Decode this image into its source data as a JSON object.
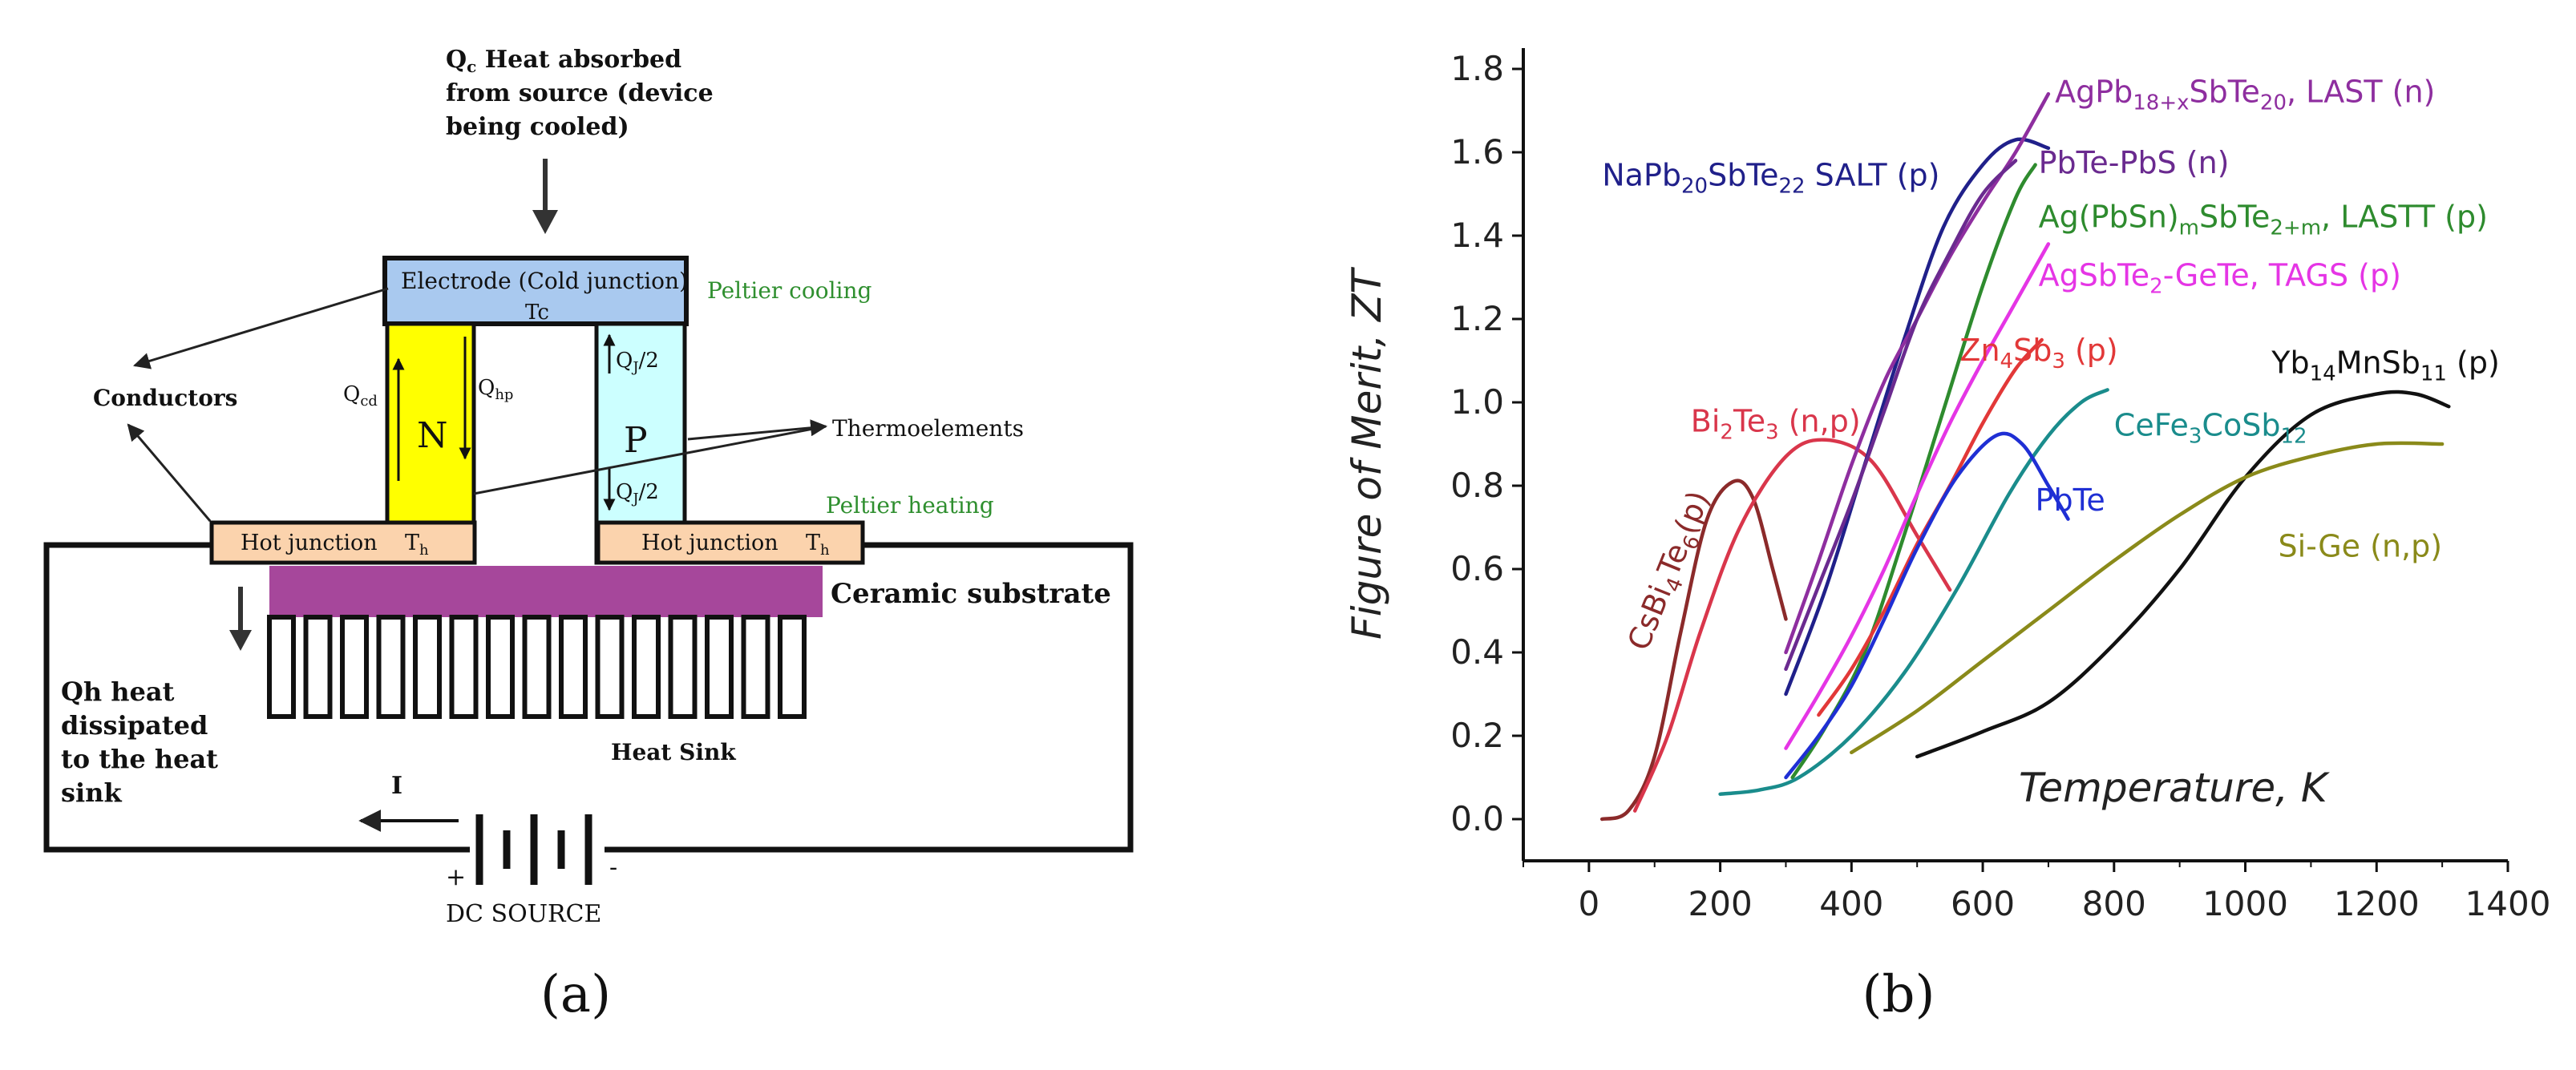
{
  "panel_a": {
    "caption": "(a)",
    "qc_label": "Qc Heat absorbed from source (device being cooled)",
    "qc_lines": [
      "Q",
      "c",
      " Heat absorbed",
      "from source (device",
      "being cooled)"
    ],
    "electrode_label": "Electrode (Cold junction)",
    "tc_label": "Tc",
    "peltier_cooling": "Peltier cooling",
    "peltier_heating": "Peltier heating",
    "conductors": "Conductors",
    "n_label": "N",
    "p_label": "P",
    "qcd_label": "Qcd",
    "qhp_label": "Qhp",
    "qj_top_label": "QJ/2",
    "qj_bottom_label": "QJ/2",
    "thermoelements": "Thermoelements",
    "hot_junction_left": "Hot junction    Th",
    "hot_junction_right": "Hot junction    Th",
    "ceramic_substrate": "Ceramic substrate",
    "heat_sink": "Heat Sink",
    "qh_lines": [
      "Qh heat",
      "dissipated",
      "to the heat",
      "sink"
    ],
    "current_label": "I",
    "plus_sign": "+",
    "minus_sign": "-",
    "dc_source": "DC SOURCE",
    "colors": {
      "electrode": "#a9c9ef",
      "n_leg": "#ffff00",
      "p_leg": "#ccffff",
      "hot_junction": "#fbd3ad",
      "ceramic": "#a6479b",
      "green_text": "#2f8f2f"
    }
  },
  "panel_b": {
    "caption": "(b)",
    "chart_data": {
      "type": "line",
      "xlabel": "Temperature, K",
      "ylabel": "Figure of Merit, ZT",
      "xlim": [
        -100,
        1400
      ],
      "ylim": [
        -0.1,
        1.85
      ],
      "x_ticks": [
        "0",
        "200",
        "400",
        "600",
        "800",
        "1000",
        "1200",
        "1400"
      ],
      "y_ticks": [
        "0.0",
        "0.2",
        "0.4",
        "0.6",
        "0.8",
        "1.0",
        "1.2",
        "1.4",
        "1.6",
        "1.8"
      ],
      "series": [
        {
          "name": "CsBi4Te6(p)",
          "color": "#8b2a2a",
          "points": [
            [
              20,
              0.0
            ],
            [
              60,
              0.02
            ],
            [
              100,
              0.15
            ],
            [
              140,
              0.45
            ],
            [
              180,
              0.72
            ],
            [
              220,
              0.81
            ],
            [
              250,
              0.77
            ],
            [
              280,
              0.6
            ],
            [
              300,
              0.48
            ]
          ]
        },
        {
          "name": "Bi2Te3 (n,p)",
          "color": "#d9364b",
          "points": [
            [
              70,
              0.02
            ],
            [
              120,
              0.2
            ],
            [
              170,
              0.45
            ],
            [
              230,
              0.7
            ],
            [
              300,
              0.87
            ],
            [
              360,
              0.91
            ],
            [
              430,
              0.86
            ],
            [
              500,
              0.68
            ],
            [
              550,
              0.55
            ]
          ]
        },
        {
          "name": "NaPb20SbTe22 SALT (p)",
          "color": "#20208a",
          "points": [
            [
              300,
              0.3
            ],
            [
              360,
              0.55
            ],
            [
              420,
              0.85
            ],
            [
              480,
              1.15
            ],
            [
              540,
              1.42
            ],
            [
              600,
              1.57
            ],
            [
              650,
              1.63
            ],
            [
              700,
              1.61
            ]
          ]
        },
        {
          "name": "AgPb18+xSbTe20, LAST (n)",
          "color": "#8e2e9f",
          "points": [
            [
              300,
              0.4
            ],
            [
              350,
              0.62
            ],
            [
              400,
              0.85
            ],
            [
              450,
              1.05
            ],
            [
              500,
              1.2
            ],
            [
              550,
              1.35
            ],
            [
              600,
              1.48
            ],
            [
              650,
              1.6
            ],
            [
              700,
              1.74
            ]
          ]
        },
        {
          "name": "PbTe-PbS (n)",
          "color": "#6a2a8f",
          "points": [
            [
              300,
              0.36
            ],
            [
              350,
              0.56
            ],
            [
              400,
              0.76
            ],
            [
              450,
              0.98
            ],
            [
              500,
              1.2
            ],
            [
              550,
              1.36
            ],
            [
              600,
              1.5
            ],
            [
              650,
              1.58
            ]
          ]
        },
        {
          "name": "Ag(PbSn)mSbTe2+m, LASTT (p)",
          "color": "#2e8b2e",
          "points": [
            [
              310,
              0.1
            ],
            [
              360,
              0.22
            ],
            [
              420,
              0.4
            ],
            [
              480,
              0.68
            ],
            [
              540,
              0.98
            ],
            [
              600,
              1.28
            ],
            [
              650,
              1.49
            ],
            [
              680,
              1.57
            ]
          ]
        },
        {
          "name": "AgSbTe2-GeTe, TAGS (p)",
          "color": "#e535e5",
          "points": [
            [
              300,
              0.17
            ],
            [
              350,
              0.3
            ],
            [
              400,
              0.44
            ],
            [
              450,
              0.6
            ],
            [
              500,
              0.78
            ],
            [
              550,
              0.95
            ],
            [
              600,
              1.1
            ],
            [
              650,
              1.24
            ],
            [
              700,
              1.38
            ]
          ]
        },
        {
          "name": "Zn4Sb3 (p)",
          "color": "#e23838",
          "points": [
            [
              350,
              0.25
            ],
            [
              400,
              0.36
            ],
            [
              450,
              0.5
            ],
            [
              500,
              0.66
            ],
            [
              550,
              0.8
            ],
            [
              600,
              0.95
            ],
            [
              650,
              1.08
            ],
            [
              690,
              1.15
            ]
          ]
        },
        {
          "name": "CeFe3CoSb12",
          "color": "#1a8c8c",
          "points": [
            [
              200,
              0.06
            ],
            [
              260,
              0.07
            ],
            [
              320,
              0.1
            ],
            [
              400,
              0.2
            ],
            [
              480,
              0.35
            ],
            [
              560,
              0.55
            ],
            [
              640,
              0.78
            ],
            [
              700,
              0.92
            ],
            [
              750,
              1.0
            ],
            [
              790,
              1.03
            ]
          ]
        },
        {
          "name": "PbTe",
          "color": "#1f2fd4",
          "points": [
            [
              300,
              0.1
            ],
            [
              350,
              0.2
            ],
            [
              400,
              0.32
            ],
            [
              450,
              0.48
            ],
            [
              500,
              0.65
            ],
            [
              560,
              0.82
            ],
            [
              620,
              0.92
            ],
            [
              660,
              0.9
            ],
            [
              700,
              0.8
            ],
            [
              730,
              0.72
            ]
          ]
        },
        {
          "name": "Yb14MnSb11 (p)",
          "color": "#111111",
          "points": [
            [
              500,
              0.15
            ],
            [
              600,
              0.21
            ],
            [
              700,
              0.28
            ],
            [
              800,
              0.42
            ],
            [
              900,
              0.6
            ],
            [
              1000,
              0.82
            ],
            [
              1100,
              0.97
            ],
            [
              1200,
              1.02
            ],
            [
              1260,
              1.02
            ],
            [
              1310,
              0.99
            ]
          ]
        },
        {
          "name": "Si-Ge (n,p)",
          "color": "#8a8a1a",
          "points": [
            [
              400,
              0.16
            ],
            [
              500,
              0.26
            ],
            [
              600,
              0.38
            ],
            [
              700,
              0.5
            ],
            [
              800,
              0.62
            ],
            [
              900,
              0.73
            ],
            [
              1000,
              0.82
            ],
            [
              1100,
              0.87
            ],
            [
              1200,
              0.9
            ],
            [
              1300,
              0.9
            ]
          ]
        }
      ],
      "labels": [
        {
          "key": "AgPb18+xSbTe20, LAST (n)",
          "color": "#8e2e9f",
          "parts": [
            [
              "AgPb",
              ""
            ],
            [
              "18+x",
              "sub"
            ],
            [
              "SbTe",
              ""
            ],
            [
              "20",
              "sub"
            ],
            [
              ", LAST (n)",
              ""
            ]
          ]
        },
        {
          "key": "NaPb20SbTe22 SALT (p)",
          "color": "#20208a",
          "parts": [
            [
              "NaPb",
              ""
            ],
            [
              "20",
              "sub"
            ],
            [
              "SbTe",
              ""
            ],
            [
              "22",
              "sub"
            ],
            [
              " SALT (p)",
              ""
            ]
          ]
        },
        {
          "key": "PbTe-PbS (n)",
          "color": "#6a2a8f",
          "parts": [
            [
              "PbTe-PbS (n)",
              ""
            ]
          ]
        },
        {
          "key": "Ag(PbSn)mSbTe2+m, LASTT (p)",
          "color": "#2e8b2e",
          "parts": [
            [
              "Ag(PbSn)",
              ""
            ],
            [
              "m",
              "sub"
            ],
            [
              "SbTe",
              ""
            ],
            [
              "2+m",
              "sub"
            ],
            [
              ", LASTT (p)",
              ""
            ]
          ]
        },
        {
          "key": "AgSbTe2-GeTe, TAGS (p)",
          "color": "#e535e5",
          "parts": [
            [
              "AgSbTe",
              ""
            ],
            [
              "2",
              "sub"
            ],
            [
              "-GeTe, TAGS (p)",
              ""
            ]
          ]
        },
        {
          "key": "Zn4Sb3 (p)",
          "color": "#e23838",
          "parts": [
            [
              "Zn",
              ""
            ],
            [
              "4",
              "sub"
            ],
            [
              "Sb",
              ""
            ],
            [
              "3",
              "sub"
            ],
            [
              " (p)",
              ""
            ]
          ]
        },
        {
          "key": "Yb14MnSb11 (p)",
          "color": "#111111",
          "parts": [
            [
              "Yb",
              ""
            ],
            [
              "14",
              "sub"
            ],
            [
              "MnSb",
              ""
            ],
            [
              "11",
              "sub"
            ],
            [
              " (p)",
              ""
            ]
          ]
        },
        {
          "key": "Bi2Te3 (n,p)",
          "color": "#d9364b",
          "parts": [
            [
              "Bi",
              ""
            ],
            [
              "2",
              "sub"
            ],
            [
              "Te",
              ""
            ],
            [
              "3",
              "sub"
            ],
            [
              " (n,p)",
              ""
            ]
          ]
        },
        {
          "key": "CeFe3CoSb12",
          "color": "#1a8c8c",
          "parts": [
            [
              "CeFe",
              ""
            ],
            [
              "3",
              "sub"
            ],
            [
              "CoSb",
              ""
            ],
            [
              "12",
              "sub"
            ]
          ]
        },
        {
          "key": "PbTe",
          "color": "#1f2fd4",
          "parts": [
            [
              "PbTe",
              ""
            ]
          ]
        },
        {
          "key": "Si-Ge (n,p)",
          "color": "#8a8a1a",
          "parts": [
            [
              "Si-Ge (n,p)",
              ""
            ]
          ]
        },
        {
          "key": "CsBi4Te6(p)",
          "color": "#8b2a2a",
          "parts": [
            [
              "CsBi",
              ""
            ],
            [
              "4",
              "sub"
            ],
            [
              "Te",
              ""
            ],
            [
              "6",
              "sub"
            ],
            [
              "(p)",
              ""
            ]
          ]
        }
      ]
    }
  }
}
